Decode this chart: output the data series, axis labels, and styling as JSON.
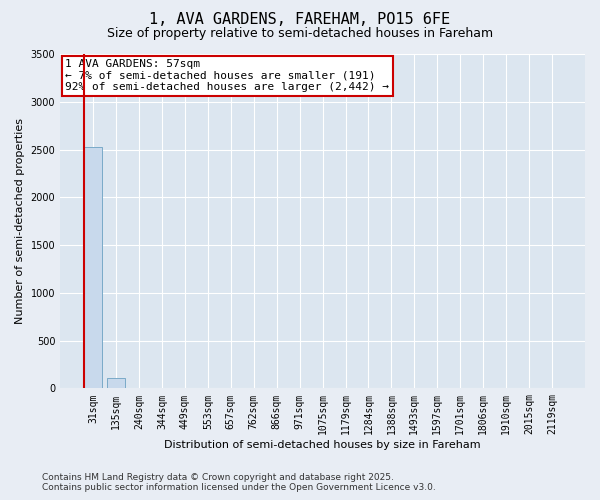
{
  "title": "1, AVA GARDENS, FAREHAM, PO15 6FE",
  "subtitle": "Size of property relative to semi-detached houses in Fareham",
  "xlabel": "Distribution of semi-detached houses by size in Fareham",
  "ylabel": "Number of semi-detached properties",
  "categories": [
    "31sqm",
    "135sqm",
    "240sqm",
    "344sqm",
    "449sqm",
    "553sqm",
    "657sqm",
    "762sqm",
    "866sqm",
    "971sqm",
    "1075sqm",
    "1179sqm",
    "1284sqm",
    "1388sqm",
    "1493sqm",
    "1597sqm",
    "1701sqm",
    "1806sqm",
    "1910sqm",
    "2015sqm",
    "2119sqm"
  ],
  "values": [
    2530,
    110,
    0,
    0,
    0,
    0,
    0,
    0,
    0,
    0,
    0,
    0,
    0,
    0,
    0,
    0,
    0,
    0,
    0,
    0,
    0
  ],
  "bar_color": "#c8d9ec",
  "bar_edge_color": "#7aaac8",
  "highlight_bar_index": 0,
  "highlight_edge_color": "#cc0000",
  "annotation_text": "1 AVA GARDENS: 57sqm\n← 7% of semi-detached houses are smaller (191)\n92% of semi-detached houses are larger (2,442) →",
  "annotation_box_color": "#ffffff",
  "annotation_edge_color": "#cc0000",
  "ylim": [
    0,
    3500
  ],
  "yticks": [
    0,
    500,
    1000,
    1500,
    2000,
    2500,
    3000,
    3500
  ],
  "bg_color": "#e8edf4",
  "plot_bg_color": "#dce6f0",
  "grid_color": "#ffffff",
  "footer_line1": "Contains HM Land Registry data © Crown copyright and database right 2025.",
  "footer_line2": "Contains public sector information licensed under the Open Government Licence v3.0.",
  "title_fontsize": 11,
  "subtitle_fontsize": 9,
  "xlabel_fontsize": 8,
  "ylabel_fontsize": 8,
  "tick_fontsize": 7,
  "annotation_fontsize": 8,
  "footer_fontsize": 6.5
}
